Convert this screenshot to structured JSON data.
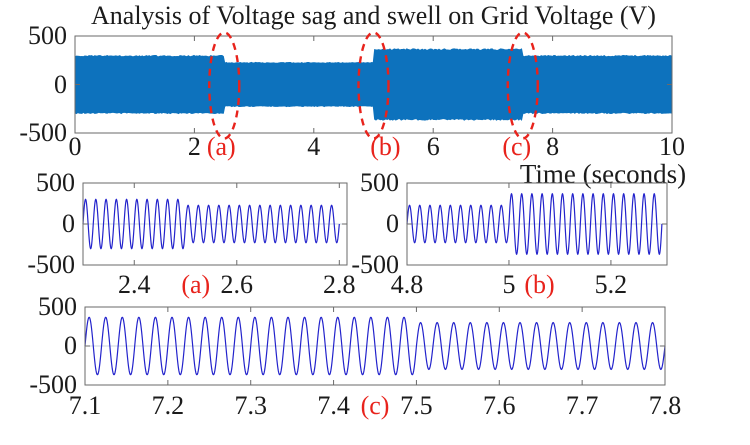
{
  "title": "Analysis of Voltage sag and swell on Grid Voltage (V)",
  "xlabel": "Time (seconds)",
  "colors": {
    "band_blue": "#0d72bd",
    "line_blue": "#2323cc",
    "annotation_red": "#e8231c",
    "axis_gray": "#6a6a6a",
    "text_dark": "#1b1b1b",
    "zero_line": "#ccd6e0"
  },
  "chart_data": {
    "type": "line",
    "unit": "V",
    "signal": {
      "waveform": "sine",
      "frequency_hz": 50,
      "segments": [
        {
          "start_s": 0.0,
          "end_s": 2.5,
          "amplitude_v": 300,
          "condition": "nominal"
        },
        {
          "start_s": 2.5,
          "end_s": 5.0,
          "amplitude_v": 228,
          "condition": "sag"
        },
        {
          "start_s": 5.0,
          "end_s": 7.5,
          "amplitude_v": 368,
          "condition": "swell"
        },
        {
          "start_s": 7.5,
          "end_s": 10.0,
          "amplitude_v": 300,
          "condition": "nominal"
        }
      ]
    },
    "subplots": [
      {
        "id": "overview",
        "xlim": [
          0,
          10
        ],
        "data_range": [
          0,
          10
        ],
        "ylim": [
          -500,
          500
        ],
        "xticks": [
          {
            "v": 0,
            "label": "0"
          },
          {
            "v": 2,
            "label": "2"
          },
          {
            "v": 4,
            "label": "4"
          },
          {
            "v": 6,
            "label": "6"
          },
          {
            "v": 8,
            "label": "8"
          },
          {
            "v": 10,
            "label": "10"
          }
        ],
        "yticks": [
          {
            "v": 500,
            "label": "500"
          },
          {
            "v": 0,
            "label": "0"
          },
          {
            "v": -500,
            "label": "-500"
          }
        ],
        "marker_labels": [
          {
            "t": 2.45,
            "label": "(a)"
          },
          {
            "t": 5.2,
            "label": "(b)"
          },
          {
            "t": 7.4,
            "label": "(c)"
          }
        ],
        "ellipse_markers": [
          {
            "t": 2.5
          },
          {
            "t": 5.0
          },
          {
            "t": 7.5
          }
        ]
      },
      {
        "id": "zoom-a",
        "xlim": [
          2.3,
          2.815
        ],
        "data_range": [
          2.3,
          2.8
        ],
        "ylim": [
          -500,
          500
        ],
        "xticks": [
          {
            "v": 2.4,
            "label": "2.4"
          },
          {
            "v": 2.6,
            "label": "2.6"
          },
          {
            "v": 2.8,
            "label": "2.8"
          }
        ],
        "yticks": [
          {
            "v": 500,
            "label": "500"
          },
          {
            "v": 0,
            "label": "0"
          },
          {
            "v": -500,
            "label": "-500"
          }
        ],
        "marker_labels": [
          {
            "t": 2.52,
            "label": "(a)"
          }
        ],
        "ellipse_markers": []
      },
      {
        "id": "zoom-b",
        "xlim": [
          4.8,
          5.31
        ],
        "data_range": [
          4.8,
          5.3
        ],
        "ylim": [
          -500,
          500
        ],
        "xticks": [
          {
            "v": 4.8,
            "label": "4.8"
          },
          {
            "v": 5,
            "label": "5"
          },
          {
            "v": 5.2,
            "label": "5.2"
          }
        ],
        "yticks": [
          {
            "v": 500,
            "label": "500"
          },
          {
            "v": 0,
            "label": "0"
          },
          {
            "v": -500,
            "label": "-500"
          }
        ],
        "marker_labels": [
          {
            "t": 5.06,
            "label": "(b)"
          }
        ],
        "ellipse_markers": []
      },
      {
        "id": "zoom-c",
        "xlim": [
          7.1,
          7.8
        ],
        "data_range": [
          7.1,
          7.8
        ],
        "ylim": [
          -500,
          500
        ],
        "xticks": [
          {
            "v": 7.1,
            "label": "7.1"
          },
          {
            "v": 7.2,
            "label": "7.2"
          },
          {
            "v": 7.3,
            "label": "7.3"
          },
          {
            "v": 7.4,
            "label": "7.4"
          },
          {
            "v": 7.5,
            "label": "7.5"
          },
          {
            "v": 7.6,
            "label": "7.6"
          },
          {
            "v": 7.7,
            "label": "7.7"
          },
          {
            "v": 7.8,
            "label": "7.8"
          }
        ],
        "yticks": [
          {
            "v": 500,
            "label": "500"
          },
          {
            "v": 0,
            "label": "0"
          },
          {
            "v": -500,
            "label": "-500"
          }
        ],
        "marker_labels": [
          {
            "t": 7.45,
            "label": "(c)"
          }
        ],
        "ellipse_markers": []
      }
    ]
  }
}
